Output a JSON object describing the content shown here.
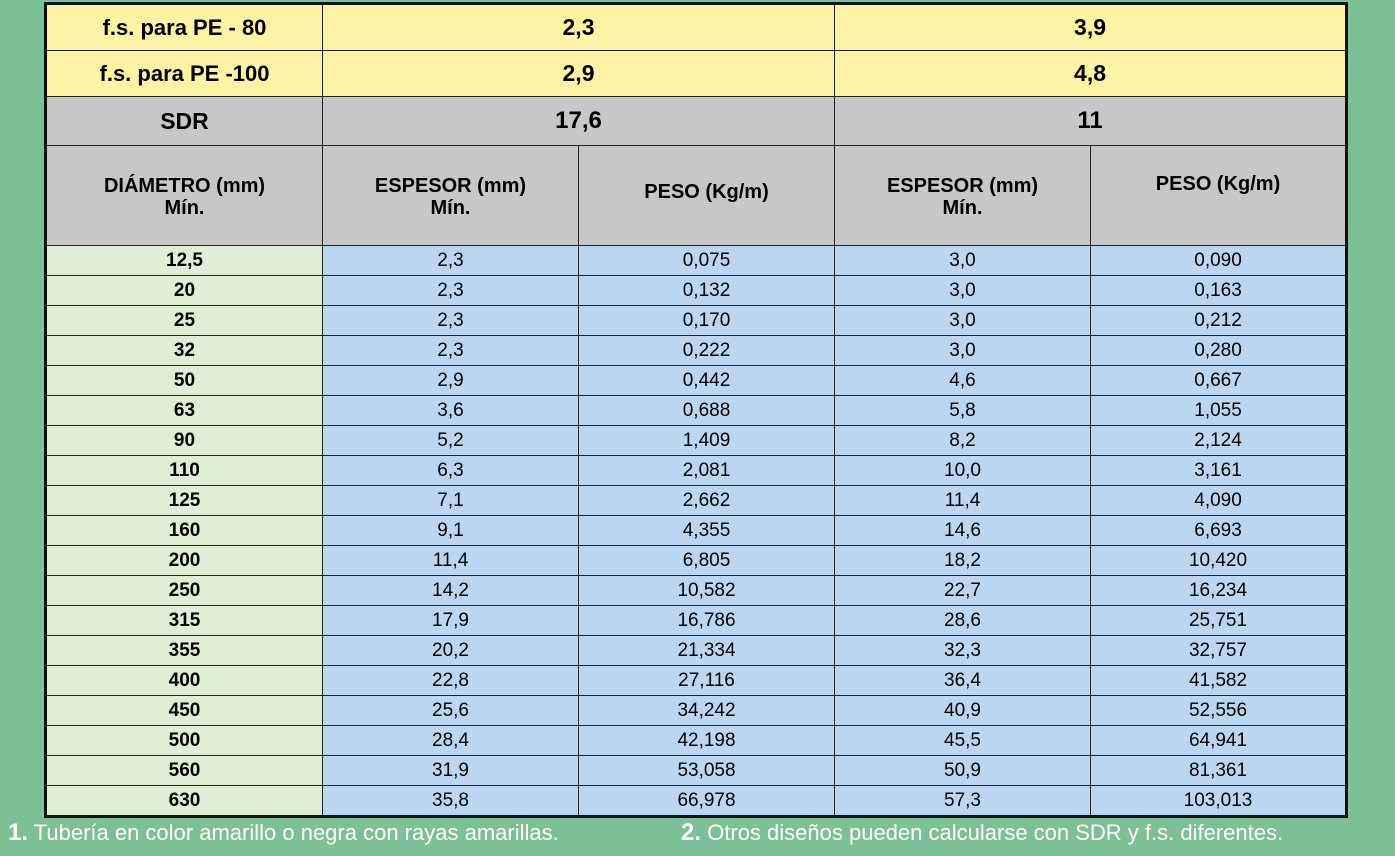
{
  "fs_rows": [
    {
      "label": "f.s. para PE - 80",
      "sdr_a": "2,3",
      "sdr_b": "3,9"
    },
    {
      "label": "f.s. para PE -100",
      "sdr_a": "2,9",
      "sdr_b": "4,8"
    }
  ],
  "sdr_row": {
    "label": "SDR",
    "value_a": "17,6",
    "value_b": "11"
  },
  "headers": {
    "diameter": [
      "DIÁMETRO (mm)",
      "Mín."
    ],
    "thickness_a": [
      "ESPESOR (mm)",
      "Mín."
    ],
    "weight_a": "PESO (Kg/m)",
    "thickness_b": [
      "ESPESOR (mm)",
      "Mín."
    ],
    "weight_b": "PESO (Kg/m)"
  },
  "rows": [
    [
      "12,5",
      "2,3",
      "0,075",
      "3,0",
      "0,090"
    ],
    [
      "20",
      "2,3",
      "0,132",
      "3,0",
      "0,163"
    ],
    [
      "25",
      "2,3",
      "0,170",
      "3,0",
      "0,212"
    ],
    [
      "32",
      "2,3",
      "0,222",
      "3,0",
      "0,280"
    ],
    [
      "50",
      "2,9",
      "0,442",
      "4,6",
      "0,667"
    ],
    [
      "63",
      "3,6",
      "0,688",
      "5,8",
      "1,055"
    ],
    [
      "90",
      "5,2",
      "1,409",
      "8,2",
      "2,124"
    ],
    [
      "110",
      "6,3",
      "2,081",
      "10,0",
      "3,161"
    ],
    [
      "125",
      "7,1",
      "2,662",
      "11,4",
      "4,090"
    ],
    [
      "160",
      "9,1",
      "4,355",
      "14,6",
      "6,693"
    ],
    [
      "200",
      "11,4",
      "6,805",
      "18,2",
      "10,420"
    ],
    [
      "250",
      "14,2",
      "10,582",
      "22,7",
      "16,234"
    ],
    [
      "315",
      "17,9",
      "16,786",
      "28,6",
      "25,751"
    ],
    [
      "355",
      "20,2",
      "21,334",
      "32,3",
      "32,757"
    ],
    [
      "400",
      "22,8",
      "27,116",
      "36,4",
      "41,582"
    ],
    [
      "450",
      "25,6",
      "34,242",
      "40,9",
      "52,556"
    ],
    [
      "500",
      "28,4",
      "42,198",
      "45,5",
      "64,941"
    ],
    [
      "560",
      "31,9",
      "53,058",
      "50,9",
      "81,361"
    ],
    [
      "630",
      "35,8",
      "66,978",
      "57,3",
      "103,013"
    ]
  ],
  "notes": [
    {
      "number": "1.",
      "text": "Tubería en color amarillo o negra con rayas amarillas."
    },
    {
      "number": "2.",
      "text": "Otros diseños pueden calcularse con SDR y f.s. diferentes."
    }
  ],
  "colors": {
    "background": "#7cc195",
    "fs_rows": "#faf3a4",
    "header": "#c7c7c7",
    "diameter_col": "#e1eed7",
    "data_cells": "#bcd6ef"
  }
}
